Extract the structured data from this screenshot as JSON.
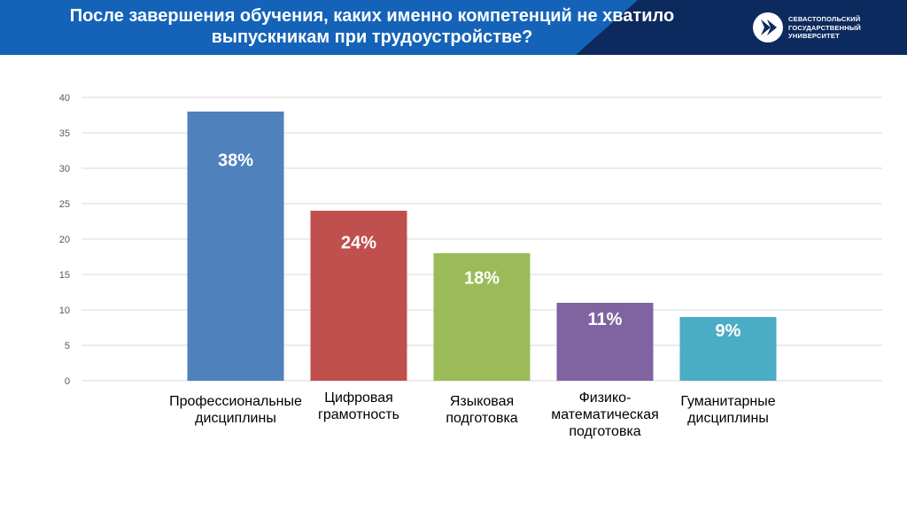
{
  "header": {
    "title_line1": "После завершения обучения, каких именно компетенций не хватило",
    "title_line2": "выпускникам при трудоустройстве?",
    "logo_line1": "СЕВАСТОПОЛЬСКИЙ",
    "logo_line2": "ГОСУДАРСТВЕННЫЙ",
    "logo_line3": "УНИВЕРСИТЕТ",
    "logo_icon": "university-emblem-icon"
  },
  "colors": {
    "header_dark": "#0d2a5e",
    "header_blue": "#1463b8",
    "grid": "#d9d9d9",
    "axis_text": "#595959"
  },
  "chart_data": {
    "type": "bar",
    "categories": [
      "Профессиональные дисциплины",
      "Цифровая грамотность",
      "Языковая подготовка",
      "Физико-математическая подготовка",
      "Гуманитарные дисциплины"
    ],
    "category_lines": [
      [
        "Профессиональные",
        "дисциплины"
      ],
      [
        "Цифровая",
        "грамотность"
      ],
      [
        "Языковая",
        "подготовка"
      ],
      [
        "Физико-математическая",
        "подготовка"
      ],
      [
        "Гуманитарные",
        "дисциплины"
      ]
    ],
    "values": [
      38,
      24,
      18,
      11,
      9
    ],
    "data_labels": [
      "38%",
      "24%",
      "18%",
      "11%",
      "9%"
    ],
    "bar_colors": [
      "#4f81bd",
      "#c0504d",
      "#9bbb59",
      "#8064a2",
      "#4bacc6"
    ],
    "ylim": [
      0,
      40
    ],
    "yticks": [
      0,
      5,
      10,
      15,
      20,
      25,
      30,
      35,
      40
    ],
    "grid": true,
    "title": "",
    "xlabel": "",
    "ylabel": ""
  }
}
